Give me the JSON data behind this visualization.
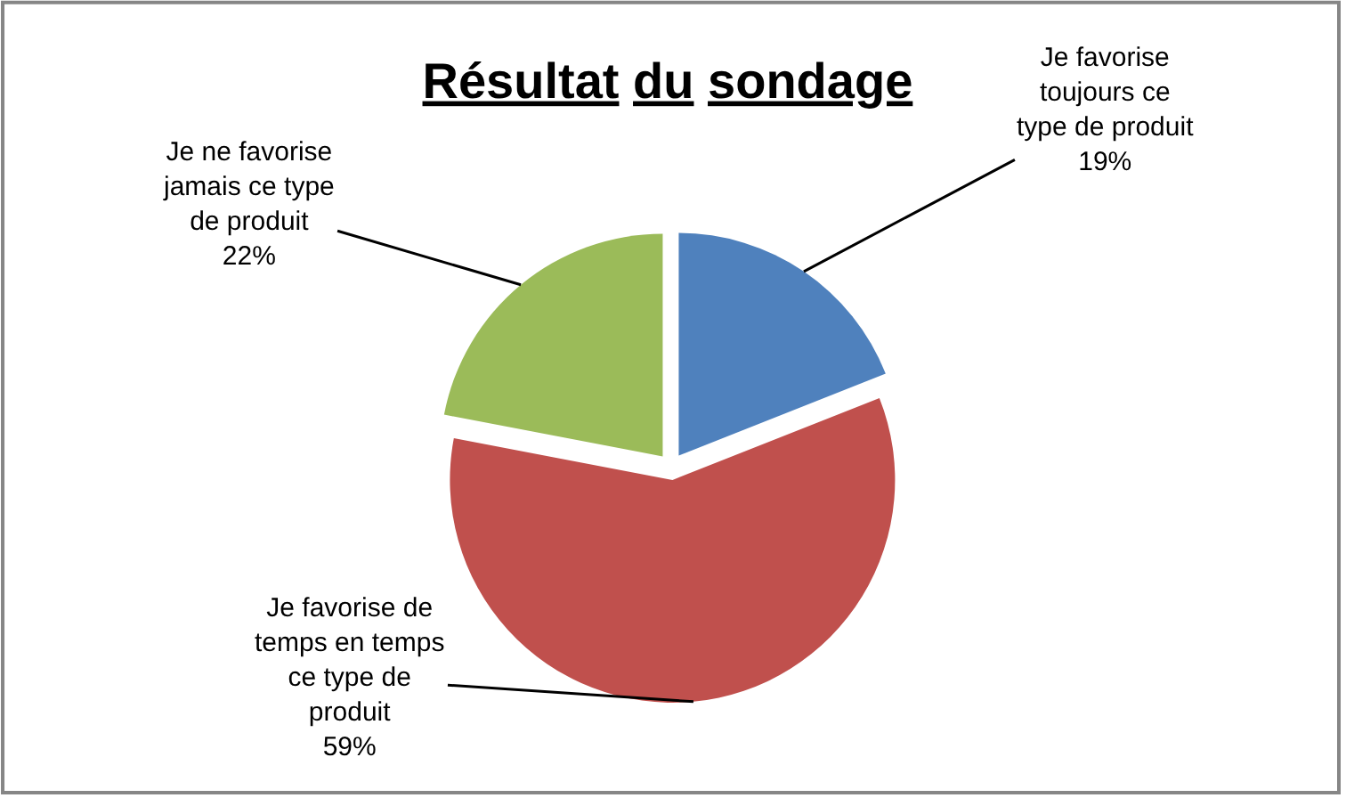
{
  "chart_data": {
    "type": "pie",
    "title": "Résultat du sondage",
    "categories": [
      "Je favorise toujours ce type de produit",
      "Je favorise de temps en temps ce type de produit",
      "Je ne favorise jamais ce type de produit"
    ],
    "values": [
      19,
      59,
      22
    ],
    "colors": [
      "#4f81bd",
      "#c0504d",
      "#9bbb59"
    ],
    "value_labels": [
      "19%",
      "59%",
      "22%"
    ]
  }
}
